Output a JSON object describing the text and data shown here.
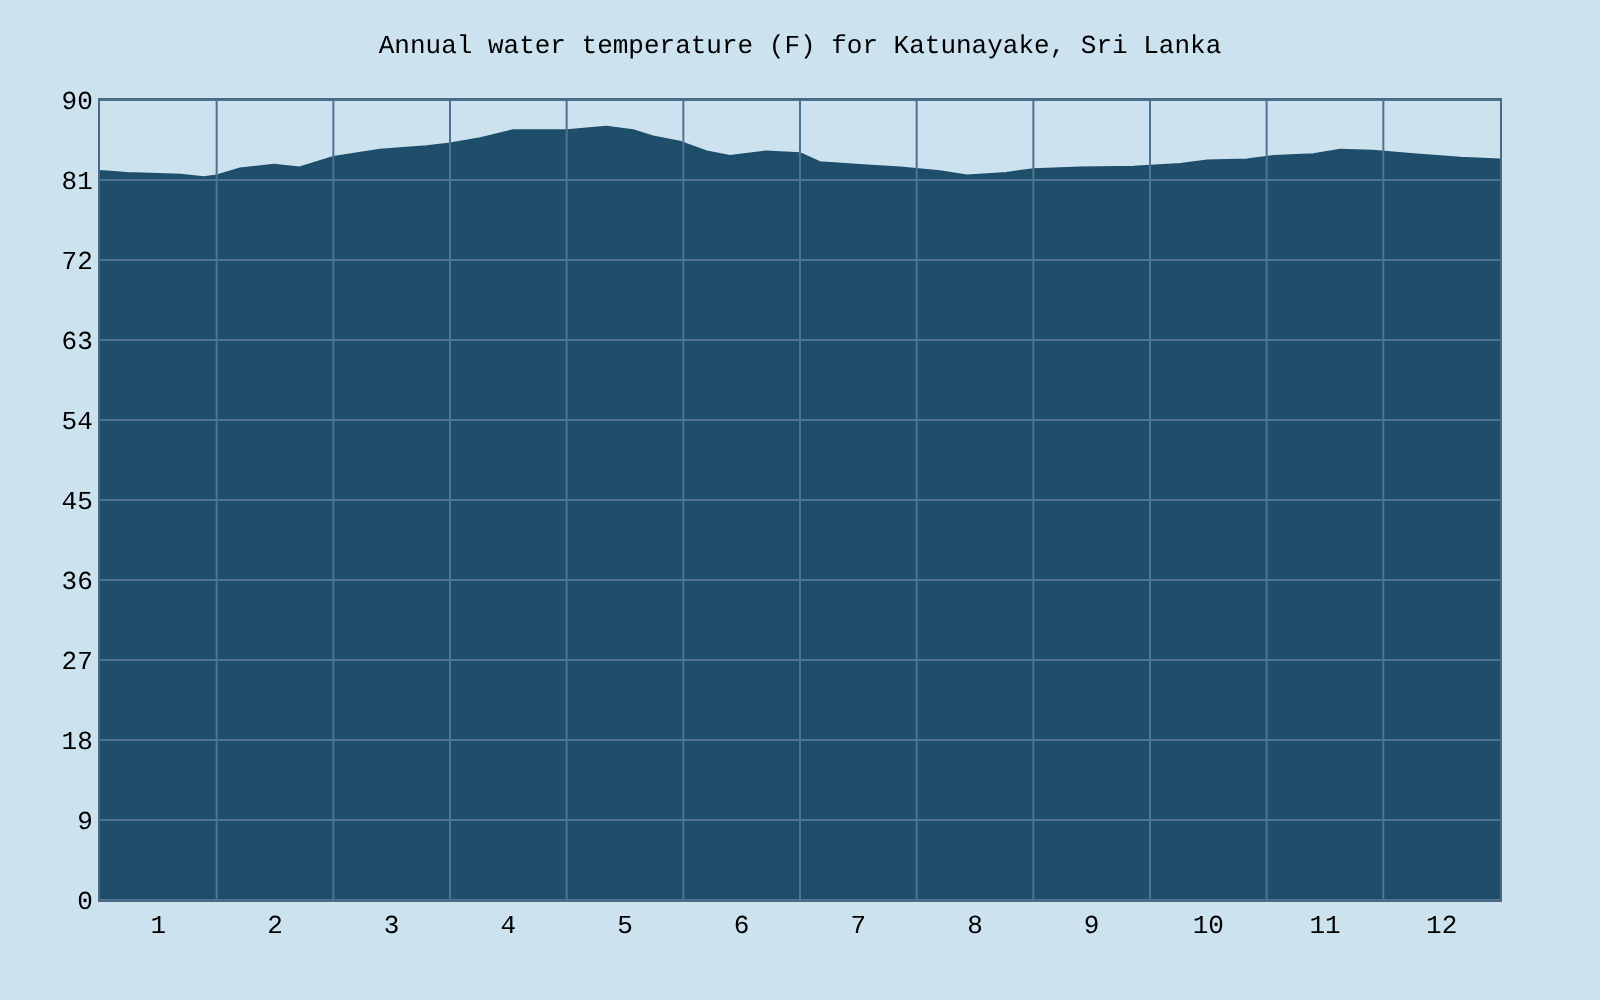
{
  "chart_data": {
    "type": "area",
    "title": "Annual water temperature (F) for Katunayake, Sri Lanka",
    "x": [
      0.5,
      0.73,
      1.19,
      1.39,
      1.5,
      1.7,
      1.99,
      2.21,
      2.5,
      2.9,
      3.3,
      3.5,
      3.76,
      4.04,
      4.33,
      4.5,
      4.84,
      5.07,
      5.24,
      5.47,
      5.7,
      5.9,
      6.21,
      6.5,
      6.67,
      7.01,
      7.36,
      7.7,
      7.93,
      8.27,
      8.5,
      8.9,
      9.36,
      9.76,
      9.99,
      10.33,
      10.56,
      10.9,
      11.13,
      11.41,
      11.76,
      12.16,
      12.5
    ],
    "series": [
      {
        "color": "#1f4e6b",
        "values": [
          82.0,
          81.8,
          81.6,
          81.3,
          81.5,
          82.3,
          82.7,
          82.4,
          83.6,
          84.4,
          84.8,
          85.1,
          85.7,
          86.6,
          86.6,
          86.6,
          87.0,
          86.6,
          85.9,
          85.3,
          84.2,
          83.7,
          84.2,
          84.0,
          83.0,
          82.7,
          82.4,
          82.0,
          81.5,
          81.8,
          82.2,
          82.4,
          82.5,
          82.8,
          83.2,
          83.3,
          83.7,
          83.9,
          84.4,
          84.3,
          83.9,
          83.5,
          83.3
        ]
      }
    ],
    "xlim": [
      0.5,
      12.5
    ],
    "xticks": [
      1,
      {
        "value": 1.5,
        "label": null
      },
      2,
      {
        "value": 2.5,
        "label": null
      },
      3,
      {
        "value": 3.5,
        "label": null
      },
      4,
      {
        "value": 4.5,
        "label": null
      },
      5,
      {
        "value": 5.5,
        "label": null
      },
      6,
      {
        "value": 6.5,
        "label": null
      },
      7,
      {
        "value": 7.5,
        "label": null
      },
      8,
      {
        "value": 8.5,
        "label": null
      },
      9,
      {
        "value": 9.5,
        "label": null
      },
      10,
      {
        "value": 10.5,
        "label": null
      },
      11,
      {
        "value": 11.5,
        "label": null
      },
      12
    ],
    "ylim": [
      0,
      90
    ],
    "yticks": [
      0,
      9,
      18,
      27,
      36,
      45,
      54,
      63,
      72,
      81,
      90
    ],
    "grid": true
  }
}
